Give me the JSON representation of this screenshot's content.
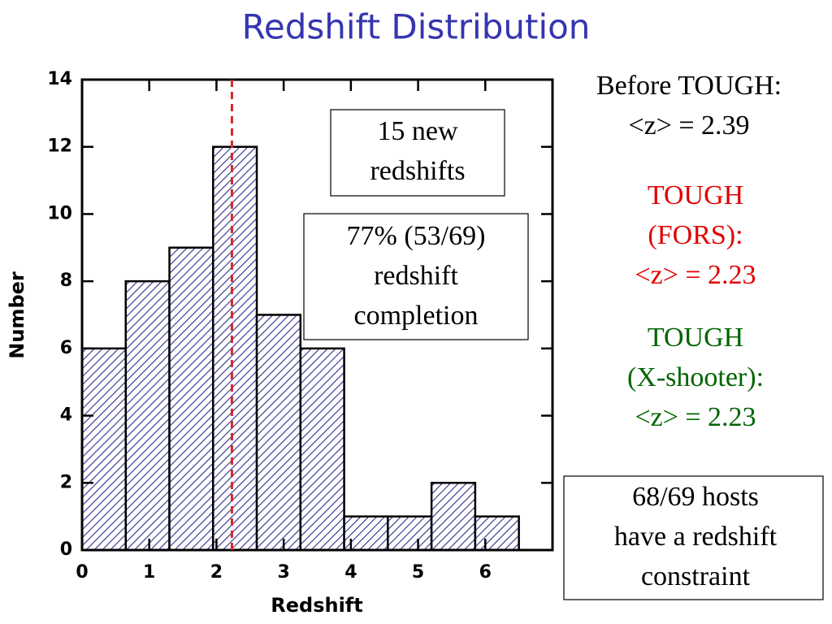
{
  "chart_data": {
    "type": "histogram",
    "title": "Redshift Distribution",
    "xlabel": "Redshift",
    "ylabel": "Number",
    "bins": [
      0,
      0.65,
      1.3,
      1.95,
      2.6,
      3.25,
      3.9,
      4.55,
      5.2,
      5.85,
      6.5
    ],
    "values": [
      6,
      8,
      9,
      12,
      7,
      6,
      1,
      1,
      2,
      1
    ],
    "color": "#2e2e8f",
    "xlim": [
      0,
      7
    ],
    "ylim": [
      0,
      14
    ],
    "xticks": [
      0,
      1,
      2,
      3,
      4,
      5,
      6
    ],
    "yticks": [
      0,
      2,
      4,
      6,
      8,
      10,
      12,
      14
    ],
    "vline": 2.23,
    "vline_color": "#d62728",
    "annotations": [
      {
        "lines": [
          "15 new",
          "redshifts"
        ],
        "color": "#000000",
        "boxed": true
      },
      {
        "lines": [
          "77% (53/69)",
          "redshift",
          "completion"
        ],
        "color": "#000000",
        "boxed": true
      },
      {
        "lines": [
          "Before TOUGH:",
          "<z> = 2.39"
        ],
        "color": "#000000",
        "boxed": false
      },
      {
        "lines": [
          "TOUGH",
          "(FORS):",
          "<z> = 2.23"
        ],
        "color": "#e00000",
        "boxed": false
      },
      {
        "lines": [
          "TOUGH",
          "(X-shooter):",
          "<z> = 2.23"
        ],
        "color": "#006400",
        "boxed": false
      },
      {
        "lines": [
          "68/69 hosts",
          "have a redshift",
          "constraint"
        ],
        "color": "#000000",
        "boxed": true
      }
    ]
  }
}
